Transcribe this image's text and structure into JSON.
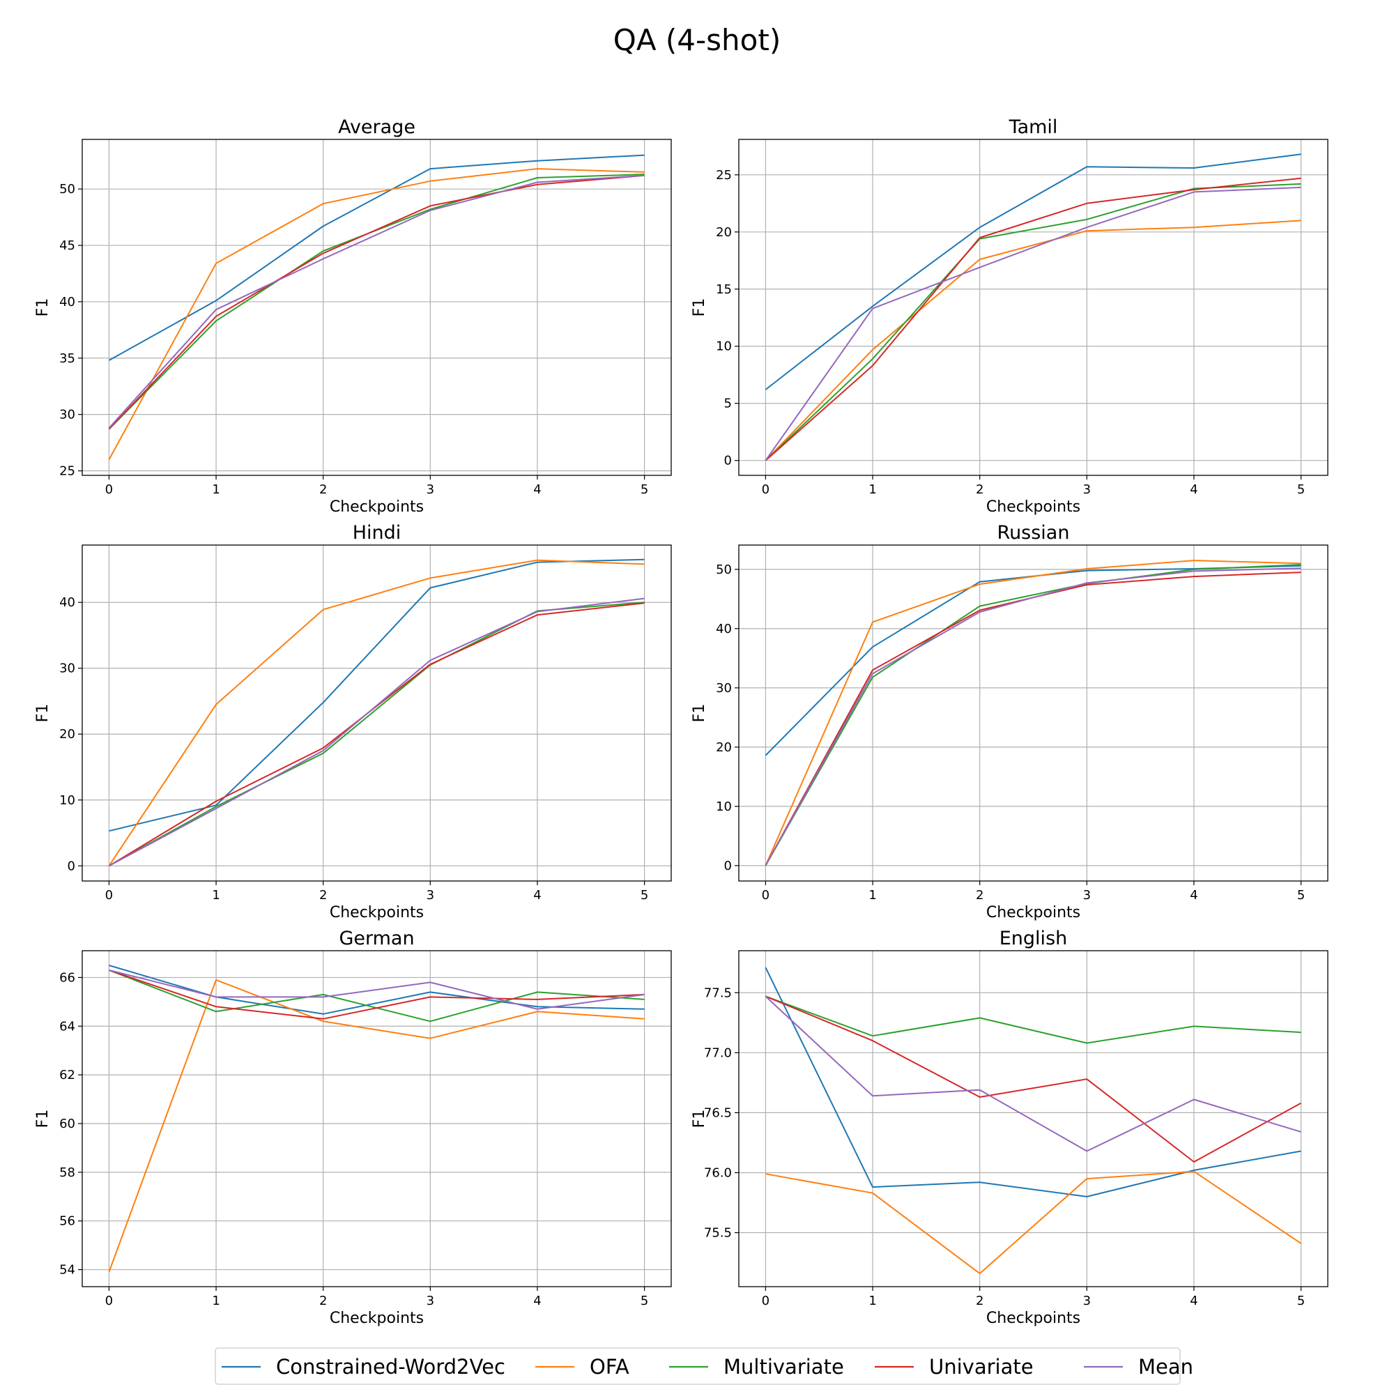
{
  "figure": {
    "title": "QA (4-shot)"
  },
  "series_styles": [
    {
      "name": "Constrained-Word2Vec",
      "color": "#1f77b4"
    },
    {
      "name": "OFA",
      "color": "#ff7f0e"
    },
    {
      "name": "Multivariate",
      "color": "#2ca02c"
    },
    {
      "name": "Univariate",
      "color": "#d62728"
    },
    {
      "name": "Mean",
      "color": "#9467bd"
    }
  ],
  "chart_data": [
    {
      "type": "line",
      "title": "Average",
      "xlabel": "Checkpoints",
      "ylabel": "F1",
      "x": [
        0,
        1,
        2,
        3,
        4,
        5
      ],
      "xlim": [
        -0.25,
        5.25
      ],
      "ylim": [
        24.6,
        54.4
      ],
      "yticks": [
        25,
        30,
        35,
        40,
        45,
        50
      ],
      "ytick_labels": [
        "25",
        "30",
        "35",
        "40",
        "45",
        "50"
      ],
      "grid": true,
      "series": [
        {
          "name": "Constrained-Word2Vec",
          "values": [
            34.8,
            40.1,
            46.7,
            51.8,
            52.5,
            53.0
          ]
        },
        {
          "name": "OFA",
          "values": [
            26.0,
            43.4,
            48.7,
            50.7,
            51.8,
            51.5
          ]
        },
        {
          "name": "Multivariate",
          "values": [
            28.7,
            38.3,
            44.5,
            48.2,
            51.0,
            51.3
          ]
        },
        {
          "name": "Univariate",
          "values": [
            28.7,
            38.7,
            44.3,
            48.5,
            50.4,
            51.2
          ]
        },
        {
          "name": "Mean",
          "values": [
            28.8,
            39.3,
            43.8,
            48.1,
            50.6,
            51.2
          ]
        }
      ]
    },
    {
      "type": "line",
      "title": "Tamil",
      "xlabel": "Checkpoints",
      "ylabel": "F1",
      "x": [
        0,
        1,
        2,
        3,
        4,
        5
      ],
      "xlim": [
        -0.25,
        5.25
      ],
      "ylim": [
        -1.3,
        28.1
      ],
      "yticks": [
        0,
        5,
        10,
        15,
        20,
        25
      ],
      "ytick_labels": [
        "0",
        "5",
        "10",
        "15",
        "20",
        "25"
      ],
      "grid": true,
      "series": [
        {
          "name": "Constrained-Word2Vec",
          "values": [
            6.2,
            13.5,
            20.4,
            25.7,
            25.6,
            26.8
          ]
        },
        {
          "name": "OFA",
          "values": [
            0.0,
            9.7,
            17.6,
            20.1,
            20.4,
            21.0
          ]
        },
        {
          "name": "Multivariate",
          "values": [
            0.0,
            8.9,
            19.4,
            21.1,
            23.8,
            24.2
          ]
        },
        {
          "name": "Univariate",
          "values": [
            0.0,
            8.3,
            19.5,
            22.5,
            23.7,
            24.7
          ]
        },
        {
          "name": "Mean",
          "values": [
            0.0,
            13.3,
            16.9,
            20.4,
            23.5,
            23.9
          ]
        }
      ]
    },
    {
      "type": "line",
      "title": "Hindi",
      "xlabel": "Checkpoints",
      "ylabel": "F1",
      "x": [
        0,
        1,
        2,
        3,
        4,
        5
      ],
      "xlim": [
        -0.25,
        5.25
      ],
      "ylim": [
        -2.3,
        48.7
      ],
      "yticks": [
        0,
        10,
        20,
        30,
        40
      ],
      "ytick_labels": [
        "0",
        "10",
        "20",
        "30",
        "40"
      ],
      "grid": true,
      "series": [
        {
          "name": "Constrained-Word2Vec",
          "values": [
            5.3,
            9.2,
            24.8,
            42.2,
            46.1,
            46.5
          ]
        },
        {
          "name": "OFA",
          "values": [
            0.0,
            24.5,
            38.9,
            43.7,
            46.4,
            45.8
          ]
        },
        {
          "name": "Multivariate",
          "values": [
            0.0,
            9.0,
            17.1,
            30.5,
            38.7,
            40.0
          ]
        },
        {
          "name": "Univariate",
          "values": [
            0.0,
            9.8,
            17.9,
            30.6,
            38.1,
            39.9
          ]
        },
        {
          "name": "Mean",
          "values": [
            0.0,
            8.7,
            17.5,
            31.2,
            38.6,
            40.6
          ]
        }
      ]
    },
    {
      "type": "line",
      "title": "Russian",
      "xlabel": "Checkpoints",
      "ylabel": "F1",
      "x": [
        0,
        1,
        2,
        3,
        4,
        5
      ],
      "xlim": [
        -0.25,
        5.25
      ],
      "ylim": [
        -2.6,
        54.1
      ],
      "yticks": [
        0,
        10,
        20,
        30,
        40,
        50
      ],
      "ytick_labels": [
        "0",
        "10",
        "20",
        "30",
        "40",
        "50"
      ],
      "grid": true,
      "series": [
        {
          "name": "Constrained-Word2Vec",
          "values": [
            18.6,
            36.9,
            47.9,
            49.8,
            50.1,
            50.6
          ]
        },
        {
          "name": "OFA",
          "values": [
            0.0,
            41.1,
            47.5,
            50.1,
            51.5,
            51.0
          ]
        },
        {
          "name": "Multivariate",
          "values": [
            0.0,
            31.8,
            43.8,
            47.6,
            50.0,
            50.8
          ]
        },
        {
          "name": "Univariate",
          "values": [
            0.0,
            33.0,
            43.1,
            47.4,
            48.8,
            49.5
          ]
        },
        {
          "name": "Mean",
          "values": [
            0.0,
            32.4,
            42.8,
            47.7,
            49.7,
            50.2
          ]
        }
      ]
    },
    {
      "type": "line",
      "title": "German",
      "xlabel": "Checkpoints",
      "ylabel": "F1",
      "x": [
        0,
        1,
        2,
        3,
        4,
        5
      ],
      "xlim": [
        -0.25,
        5.25
      ],
      "ylim": [
        53.3,
        67.1
      ],
      "yticks": [
        54,
        56,
        58,
        60,
        62,
        64,
        66
      ],
      "ytick_labels": [
        "54",
        "56",
        "58",
        "60",
        "62",
        "64",
        "66"
      ],
      "grid": true,
      "series": [
        {
          "name": "Constrained-Word2Vec",
          "values": [
            66.5,
            65.2,
            64.5,
            65.4,
            64.8,
            64.7
          ]
        },
        {
          "name": "OFA",
          "values": [
            53.9,
            65.9,
            64.2,
            63.5,
            64.6,
            64.3
          ]
        },
        {
          "name": "Multivariate",
          "values": [
            66.3,
            64.6,
            65.3,
            64.2,
            65.4,
            65.1
          ]
        },
        {
          "name": "Univariate",
          "values": [
            66.3,
            64.8,
            64.3,
            65.2,
            65.1,
            65.3
          ]
        },
        {
          "name": "Mean",
          "values": [
            66.3,
            65.2,
            65.2,
            65.8,
            64.7,
            65.3
          ]
        }
      ]
    },
    {
      "type": "line",
      "title": "English",
      "xlabel": "Checkpoints",
      "ylabel": "F1",
      "x": [
        0,
        1,
        2,
        3,
        4,
        5
      ],
      "xlim": [
        -0.25,
        5.25
      ],
      "ylim": [
        75.05,
        77.85
      ],
      "yticks": [
        75.5,
        76.0,
        76.5,
        77.0,
        77.5
      ],
      "ytick_labels": [
        "75.5",
        "76.0",
        "76.5",
        "77.0",
        "77.5"
      ],
      "grid": true,
      "series": [
        {
          "name": "Constrained-Word2Vec",
          "values": [
            77.71,
            75.88,
            75.92,
            75.8,
            76.02,
            76.18
          ]
        },
        {
          "name": "OFA",
          "values": [
            75.99,
            75.83,
            75.16,
            75.95,
            76.01,
            75.41
          ]
        },
        {
          "name": "Multivariate",
          "values": [
            77.47,
            77.14,
            77.29,
            77.08,
            77.22,
            77.17
          ]
        },
        {
          "name": "Univariate",
          "values": [
            77.47,
            77.1,
            76.63,
            76.78,
            76.09,
            76.58
          ]
        },
        {
          "name": "Mean",
          "values": [
            77.47,
            76.64,
            76.69,
            76.18,
            76.61,
            76.34
          ]
        }
      ]
    }
  ],
  "legend": {
    "position": "bottom-center",
    "entries": [
      "Constrained-Word2Vec",
      "OFA",
      "Multivariate",
      "Univariate",
      "Mean"
    ]
  }
}
